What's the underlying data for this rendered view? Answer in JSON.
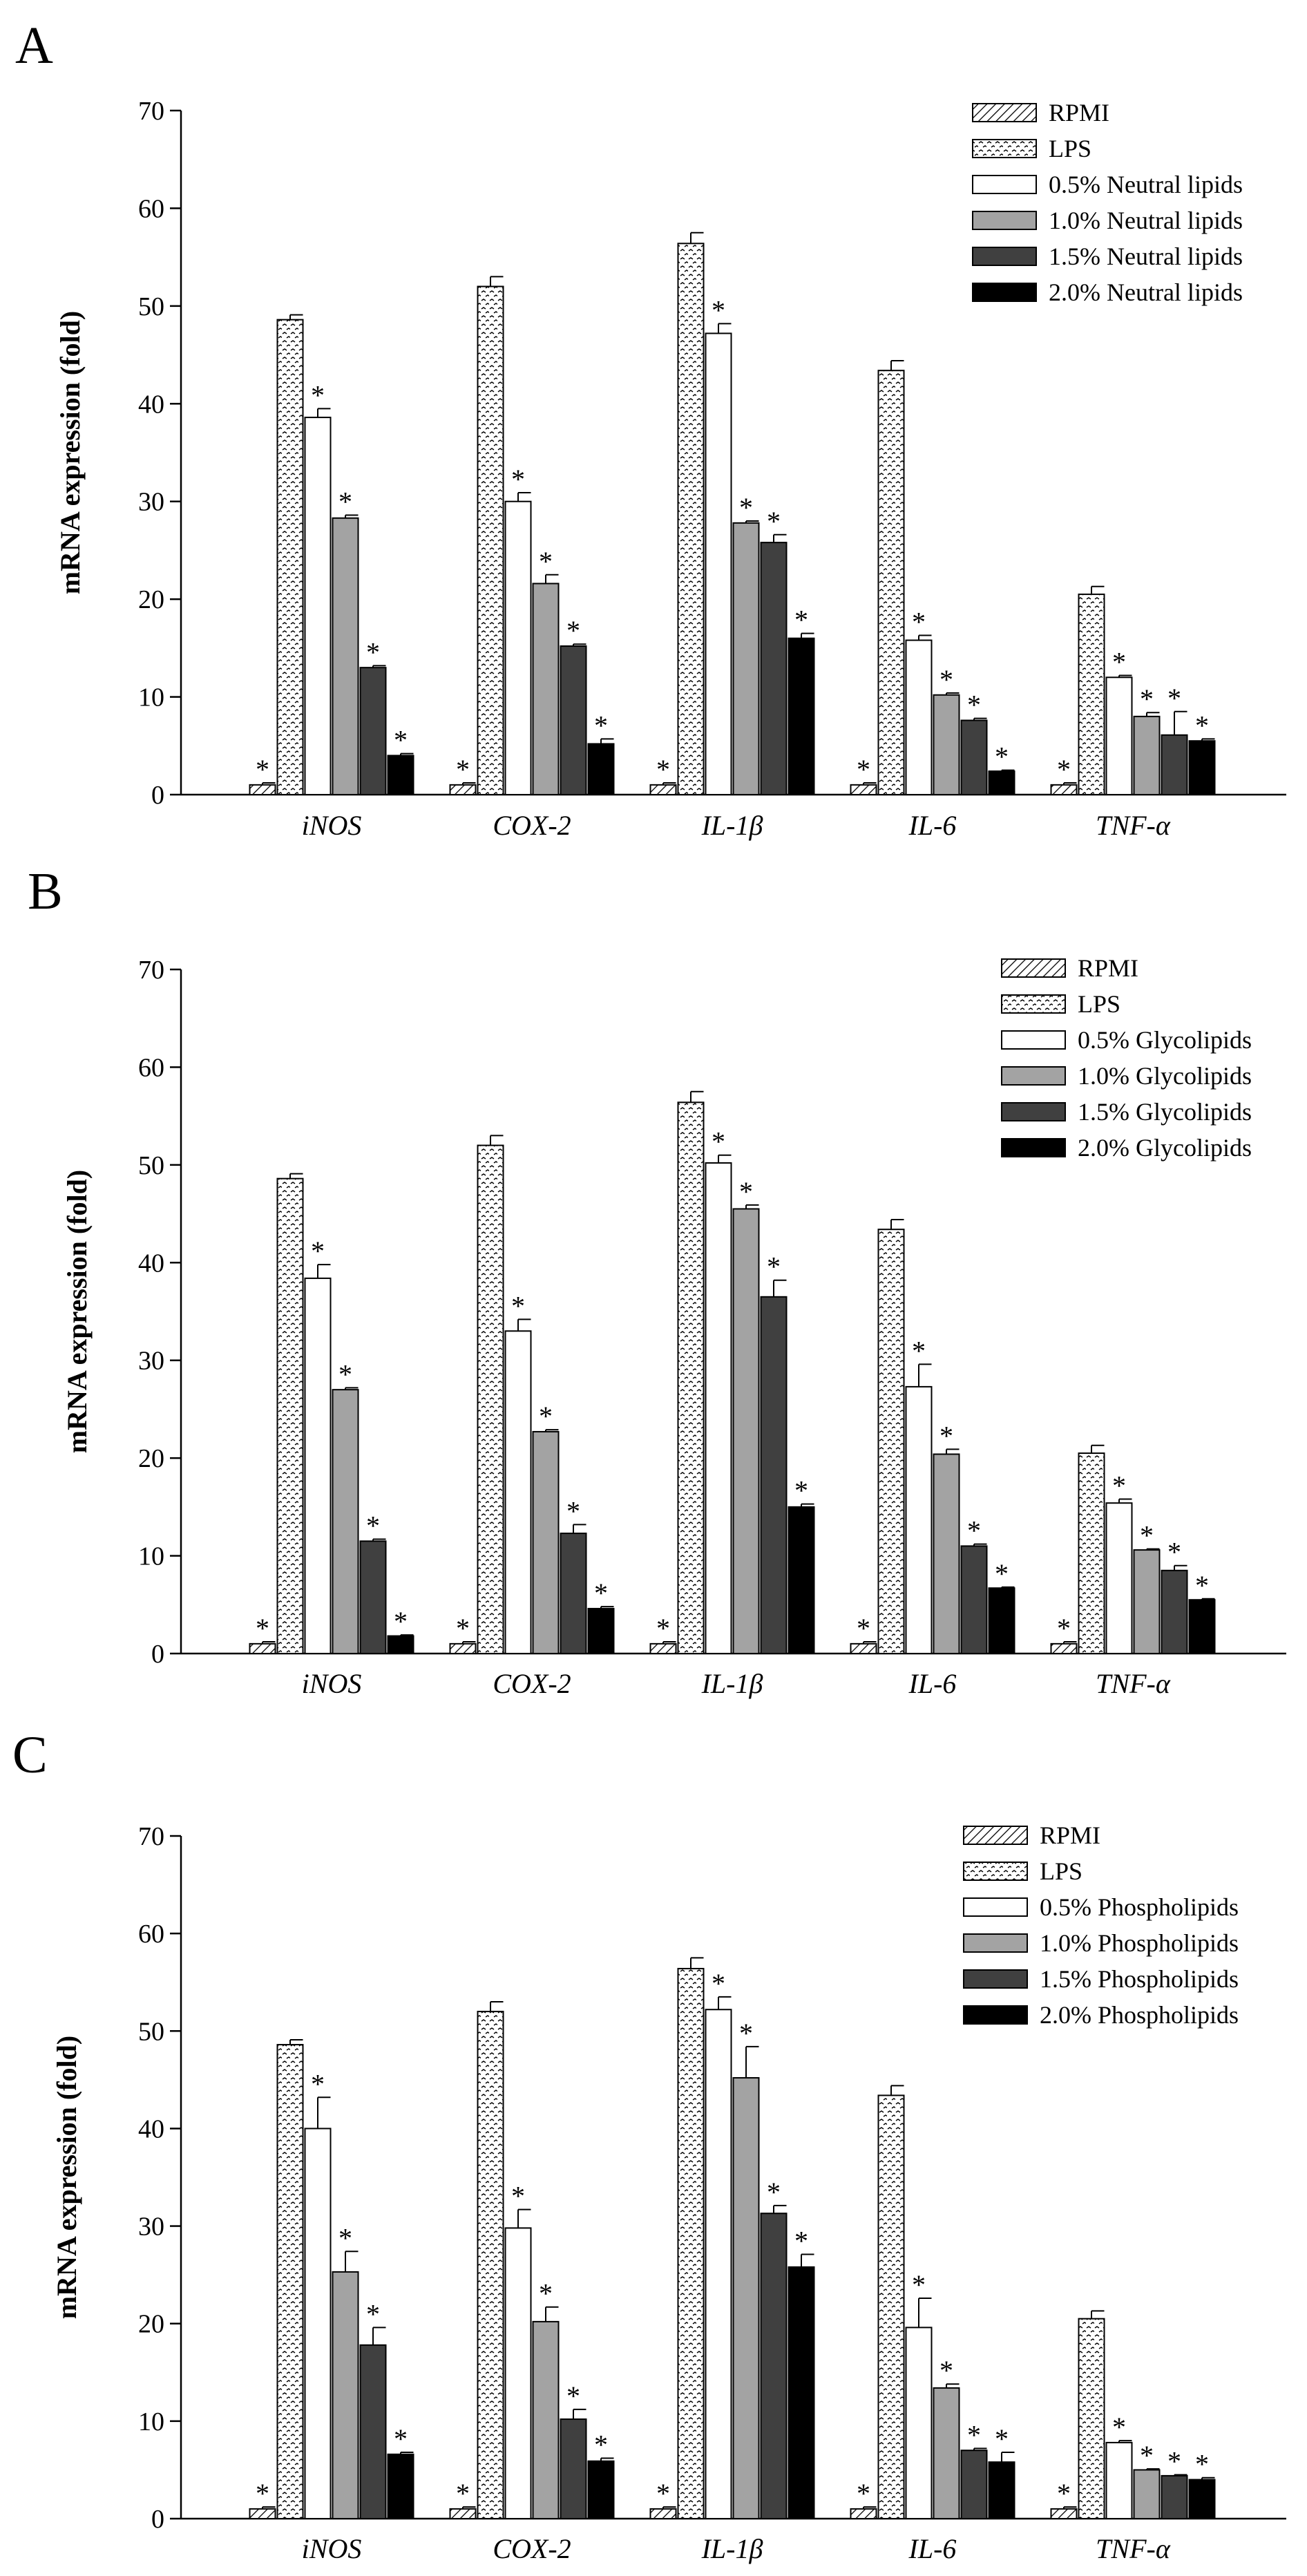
{
  "colors": {
    "rpmi": "hatched",
    "lps": "dotted",
    "s05": "#ffffff",
    "s10": "#a3a3a3",
    "s15": "#404040",
    "s20": "#000000"
  },
  "chart_data": [
    {
      "type": "bar",
      "panel": "A",
      "ylabel": "mRNA expression (fold)",
      "ylim": [
        0,
        70
      ],
      "yticks": [
        0,
        10,
        20,
        30,
        40,
        50,
        60,
        70
      ],
      "categories": [
        "iNOS",
        "COX-2",
        "IL-1β",
        "IL-6",
        "TNF-α"
      ],
      "legend_position": "top-right",
      "series": [
        {
          "name": "RPMI",
          "pattern": "hatch",
          "values": [
            1,
            1,
            1,
            1,
            1
          ],
          "errors": [
            0.2,
            0.2,
            0.2,
            0.2,
            0.2
          ],
          "significant": [
            true,
            true,
            true,
            true,
            true
          ]
        },
        {
          "name": "LPS",
          "pattern": "dots",
          "values": [
            48.6,
            52,
            56.4,
            43.4,
            20.5
          ],
          "errors": [
            0.5,
            1.0,
            1.1,
            1.0,
            0.8
          ],
          "significant": [
            false,
            false,
            false,
            false,
            false
          ]
        },
        {
          "name": "0.5% Neutral lipids",
          "pattern": "white",
          "values": [
            38.6,
            30,
            47.2,
            15.8,
            12
          ],
          "errors": [
            0.9,
            0.9,
            1.0,
            0.5,
            0.2
          ],
          "significant": [
            true,
            true,
            true,
            true,
            true
          ]
        },
        {
          "name": "1.0% Neutral lipids",
          "pattern": "lightgray",
          "values": [
            28.3,
            21.6,
            27.8,
            10.2,
            8
          ],
          "errors": [
            0.3,
            0.9,
            0.2,
            0.2,
            0.4
          ],
          "significant": [
            true,
            true,
            true,
            true,
            true
          ]
        },
        {
          "name": "1.5% Neutral lipids",
          "pattern": "darkgray",
          "values": [
            13,
            15.2,
            25.8,
            7.6,
            6.1
          ],
          "errors": [
            0.2,
            0.2,
            0.8,
            0.2,
            2.4
          ],
          "significant": [
            true,
            true,
            true,
            true,
            true
          ]
        },
        {
          "name": "2.0% Neutral lipids",
          "pattern": "black",
          "values": [
            4,
            5.2,
            16,
            2.4,
            5.5
          ],
          "errors": [
            0.2,
            0.5,
            0.5,
            0.1,
            0.2
          ],
          "significant": [
            true,
            true,
            true,
            true,
            true
          ]
        }
      ]
    },
    {
      "type": "bar",
      "panel": "B",
      "ylabel": "mRNA expression (fold)",
      "ylim": [
        0,
        70
      ],
      "yticks": [
        0,
        10,
        20,
        30,
        40,
        50,
        60,
        70
      ],
      "categories": [
        "iNOS",
        "COX-2",
        "IL-1β",
        "IL-6",
        "TNF-α"
      ],
      "legend_position": "top-right",
      "series": [
        {
          "name": "RPMI",
          "pattern": "hatch",
          "values": [
            1,
            1,
            1,
            1,
            1
          ],
          "errors": [
            0.2,
            0.2,
            0.2,
            0.2,
            0.2
          ],
          "significant": [
            true,
            true,
            true,
            true,
            true
          ]
        },
        {
          "name": "LPS",
          "pattern": "dots",
          "values": [
            48.6,
            52,
            56.4,
            43.4,
            20.5
          ],
          "errors": [
            0.5,
            1.0,
            1.1,
            1.0,
            0.8
          ],
          "significant": [
            false,
            false,
            false,
            false,
            false
          ]
        },
        {
          "name": "0.5% Glycolipids",
          "pattern": "white",
          "values": [
            38.4,
            33,
            50.2,
            27.3,
            15.4
          ],
          "errors": [
            1.4,
            1.2,
            0.8,
            2.3,
            0.4
          ],
          "significant": [
            true,
            true,
            true,
            true,
            true
          ]
        },
        {
          "name": "1.0% Glycolipids",
          "pattern": "lightgray",
          "values": [
            27,
            22.7,
            45.5,
            20.4,
            10.6
          ],
          "errors": [
            0.2,
            0.2,
            0.4,
            0.5,
            0.1
          ],
          "significant": [
            true,
            true,
            true,
            true,
            true
          ]
        },
        {
          "name": "1.5% Glycolipids",
          "pattern": "darkgray",
          "values": [
            11.5,
            12.3,
            36.5,
            11,
            8.5
          ],
          "errors": [
            0.2,
            0.9,
            1.7,
            0.2,
            0.5
          ],
          "significant": [
            true,
            true,
            true,
            true,
            true
          ]
        },
        {
          "name": "2.0% Glycolipids",
          "pattern": "black",
          "values": [
            1.8,
            4.6,
            15,
            6.7,
            5.5
          ],
          "errors": [
            0.1,
            0.2,
            0.3,
            0.1,
            0.1
          ],
          "significant": [
            true,
            true,
            true,
            true,
            true
          ]
        }
      ]
    },
    {
      "type": "bar",
      "panel": "C",
      "ylabel": "mRNA expression (fold)",
      "ylim": [
        0,
        70
      ],
      "yticks": [
        0,
        10,
        20,
        30,
        40,
        50,
        60,
        70
      ],
      "categories": [
        "iNOS",
        "COX-2",
        "IL-1β",
        "IL-6",
        "TNF-α"
      ],
      "legend_position": "top-right",
      "series": [
        {
          "name": "RPMI",
          "pattern": "hatch",
          "values": [
            1,
            1,
            1,
            1,
            1
          ],
          "errors": [
            0.2,
            0.2,
            0.2,
            0.2,
            0.2
          ],
          "significant": [
            true,
            true,
            true,
            true,
            true
          ]
        },
        {
          "name": "LPS",
          "pattern": "dots",
          "values": [
            48.6,
            52,
            56.4,
            43.4,
            20.5
          ],
          "errors": [
            0.5,
            1.0,
            1.1,
            1.0,
            0.8
          ],
          "significant": [
            false,
            false,
            false,
            false,
            false
          ]
        },
        {
          "name": "0.5% Phospholipids",
          "pattern": "white",
          "values": [
            40,
            29.8,
            52.2,
            19.6,
            7.8
          ],
          "errors": [
            3.2,
            1.9,
            1.3,
            3.0,
            0.2
          ],
          "significant": [
            true,
            true,
            true,
            true,
            true
          ]
        },
        {
          "name": "1.0% Phospholipids",
          "pattern": "lightgray",
          "values": [
            25.3,
            20.2,
            45.2,
            13.4,
            5
          ],
          "errors": [
            2.1,
            1.5,
            3.2,
            0.4,
            0.1
          ],
          "significant": [
            true,
            true,
            true,
            true,
            true
          ]
        },
        {
          "name": "1.5% Phospholipids",
          "pattern": "darkgray",
          "values": [
            17.8,
            10.2,
            31.3,
            7,
            4.4
          ],
          "errors": [
            1.8,
            1.0,
            0.8,
            0.2,
            0.1
          ],
          "significant": [
            true,
            true,
            true,
            true,
            true
          ]
        },
        {
          "name": "2.0% Phospholipids",
          "pattern": "black",
          "values": [
            6.6,
            5.9,
            25.8,
            5.8,
            4
          ],
          "errors": [
            0.2,
            0.3,
            1.3,
            1.0,
            0.2
          ],
          "significant": [
            true,
            true,
            true,
            true,
            true
          ]
        }
      ]
    }
  ],
  "panels": [
    {
      "letter": "A"
    },
    {
      "letter": "B"
    },
    {
      "letter": "C"
    }
  ],
  "significance_marker": "*"
}
